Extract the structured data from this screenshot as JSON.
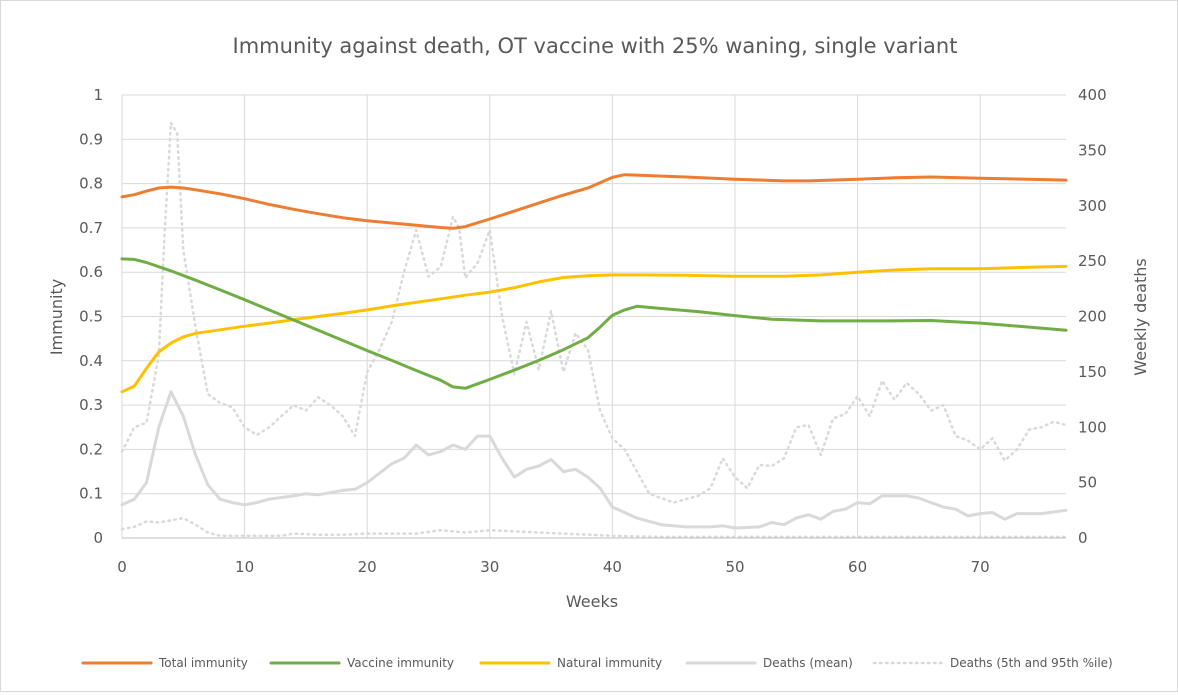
{
  "chart_data": {
    "type": "line",
    "title": "Immunity against death, OT vaccine with 25% waning, single variant",
    "xlabel": "Weeks",
    "ylabel": "Immunity",
    "y2label": "Weekly deaths",
    "xlim": [
      0,
      77
    ],
    "ylim": [
      0,
      1
    ],
    "y2lim": [
      0,
      400
    ],
    "x_ticks": [
      0,
      10,
      20,
      30,
      40,
      50,
      60,
      70
    ],
    "y_ticks": [
      0,
      0.1,
      0.2,
      0.3,
      0.4,
      0.5,
      0.6,
      0.7,
      0.8,
      0.9,
      1
    ],
    "y2_ticks": [
      0,
      50,
      100,
      150,
      200,
      250,
      300,
      350,
      400
    ],
    "grid": true,
    "legend_position": "bottom",
    "series": [
      {
        "name": "Total immunity",
        "axis": "left",
        "color": "#ED7D31",
        "style": "solid",
        "points": [
          [
            0,
            0.77
          ],
          [
            1,
            0.775
          ],
          [
            2,
            0.783
          ],
          [
            3,
            0.79
          ],
          [
            4,
            0.792
          ],
          [
            5,
            0.79
          ],
          [
            6,
            0.786
          ],
          [
            8,
            0.777
          ],
          [
            10,
            0.766
          ],
          [
            12,
            0.753
          ],
          [
            14,
            0.742
          ],
          [
            16,
            0.732
          ],
          [
            18,
            0.723
          ],
          [
            20,
            0.716
          ],
          [
            22,
            0.711
          ],
          [
            24,
            0.706
          ],
          [
            26,
            0.701
          ],
          [
            27,
            0.699
          ],
          [
            28,
            0.703
          ],
          [
            30,
            0.72
          ],
          [
            32,
            0.738
          ],
          [
            34,
            0.756
          ],
          [
            36,
            0.774
          ],
          [
            38,
            0.79
          ],
          [
            40,
            0.814
          ],
          [
            41,
            0.82
          ],
          [
            43,
            0.818
          ],
          [
            46,
            0.815
          ],
          [
            50,
            0.81
          ],
          [
            54,
            0.806
          ],
          [
            56,
            0.806
          ],
          [
            60,
            0.81
          ],
          [
            63,
            0.813
          ],
          [
            66,
            0.815
          ],
          [
            70,
            0.812
          ],
          [
            74,
            0.81
          ],
          [
            77,
            0.808
          ]
        ]
      },
      {
        "name": "Vaccine immunity",
        "axis": "left",
        "color": "#70AD47",
        "style": "solid",
        "points": [
          [
            0,
            0.63
          ],
          [
            1,
            0.629
          ],
          [
            2,
            0.622
          ],
          [
            4,
            0.603
          ],
          [
            6,
            0.582
          ],
          [
            8,
            0.56
          ],
          [
            10,
            0.538
          ],
          [
            12,
            0.515
          ],
          [
            14,
            0.492
          ],
          [
            16,
            0.469
          ],
          [
            18,
            0.446
          ],
          [
            20,
            0.423
          ],
          [
            22,
            0.401
          ],
          [
            24,
            0.378
          ],
          [
            26,
            0.356
          ],
          [
            27,
            0.341
          ],
          [
            28,
            0.338
          ],
          [
            30,
            0.358
          ],
          [
            32,
            0.379
          ],
          [
            34,
            0.401
          ],
          [
            36,
            0.425
          ],
          [
            38,
            0.452
          ],
          [
            39,
            0.476
          ],
          [
            40,
            0.503
          ],
          [
            41,
            0.515
          ],
          [
            42,
            0.523
          ],
          [
            44,
            0.518
          ],
          [
            47,
            0.511
          ],
          [
            50,
            0.502
          ],
          [
            53,
            0.494
          ],
          [
            57,
            0.49
          ],
          [
            62,
            0.49
          ],
          [
            66,
            0.491
          ],
          [
            70,
            0.485
          ],
          [
            74,
            0.476
          ],
          [
            77,
            0.469
          ]
        ]
      },
      {
        "name": "Natural immunity",
        "axis": "left",
        "color": "#FFC000",
        "style": "solid",
        "points": [
          [
            0,
            0.33
          ],
          [
            1,
            0.343
          ],
          [
            2,
            0.383
          ],
          [
            3,
            0.42
          ],
          [
            4,
            0.44
          ],
          [
            5,
            0.454
          ],
          [
            6,
            0.462
          ],
          [
            8,
            0.47
          ],
          [
            10,
            0.478
          ],
          [
            12,
            0.485
          ],
          [
            14,
            0.493
          ],
          [
            16,
            0.5
          ],
          [
            18,
            0.507
          ],
          [
            20,
            0.515
          ],
          [
            22,
            0.524
          ],
          [
            24,
            0.532
          ],
          [
            26,
            0.54
          ],
          [
            28,
            0.548
          ],
          [
            30,
            0.555
          ],
          [
            32,
            0.565
          ],
          [
            34,
            0.578
          ],
          [
            36,
            0.588
          ],
          [
            38,
            0.592
          ],
          [
            40,
            0.594
          ],
          [
            42,
            0.594
          ],
          [
            46,
            0.593
          ],
          [
            50,
            0.591
          ],
          [
            54,
            0.591
          ],
          [
            57,
            0.594
          ],
          [
            60,
            0.6
          ],
          [
            63,
            0.605
          ],
          [
            66,
            0.608
          ],
          [
            70,
            0.608
          ],
          [
            74,
            0.611
          ],
          [
            77,
            0.613
          ]
        ]
      },
      {
        "name": "Deaths (mean)",
        "axis": "right",
        "color": "#D9D9D9",
        "style": "solid",
        "points": [
          [
            0,
            30
          ],
          [
            1,
            35
          ],
          [
            2,
            50
          ],
          [
            3,
            100
          ],
          [
            4,
            132
          ],
          [
            5,
            110
          ],
          [
            6,
            75
          ],
          [
            7,
            48
          ],
          [
            8,
            35
          ],
          [
            9,
            32
          ],
          [
            10,
            30
          ],
          [
            11,
            32
          ],
          [
            12,
            35
          ],
          [
            14,
            38
          ],
          [
            15,
            40
          ],
          [
            16,
            39
          ],
          [
            18,
            43
          ],
          [
            19,
            44
          ],
          [
            20,
            50
          ],
          [
            22,
            67
          ],
          [
            23,
            72
          ],
          [
            24,
            84
          ],
          [
            25,
            75
          ],
          [
            26,
            78
          ],
          [
            27,
            84
          ],
          [
            28,
            80
          ],
          [
            29,
            92
          ],
          [
            30,
            92
          ],
          [
            31,
            72
          ],
          [
            32,
            55
          ],
          [
            33,
            62
          ],
          [
            34,
            65
          ],
          [
            35,
            71
          ],
          [
            36,
            60
          ],
          [
            37,
            62
          ],
          [
            38,
            55
          ],
          [
            39,
            45
          ],
          [
            40,
            28
          ],
          [
            42,
            18
          ],
          [
            44,
            12
          ],
          [
            46,
            10
          ],
          [
            48,
            10
          ],
          [
            49,
            11
          ],
          [
            50,
            9
          ],
          [
            52,
            10
          ],
          [
            53,
            14
          ],
          [
            54,
            12
          ],
          [
            55,
            18
          ],
          [
            56,
            21
          ],
          [
            57,
            17
          ],
          [
            58,
            24
          ],
          [
            59,
            26
          ],
          [
            60,
            32
          ],
          [
            61,
            31
          ],
          [
            62,
            38
          ],
          [
            63,
            38
          ],
          [
            64,
            38
          ],
          [
            65,
            36
          ],
          [
            66,
            32
          ],
          [
            67,
            28
          ],
          [
            68,
            26
          ],
          [
            69,
            20
          ],
          [
            70,
            22
          ],
          [
            71,
            23
          ],
          [
            72,
            17
          ],
          [
            73,
            22
          ],
          [
            75,
            22
          ],
          [
            77,
            25
          ]
        ]
      },
      {
        "name": "Deaths (5th and 95th %ile)",
        "axis": "right",
        "color": "#D9D9D9",
        "style": "dotted",
        "points": [
          [
            0,
            78
          ],
          [
            1,
            100
          ],
          [
            2,
            104
          ],
          [
            3,
            165
          ],
          [
            3.5,
            280
          ],
          [
            4,
            375
          ],
          [
            4.5,
            365
          ],
          [
            5,
            260
          ],
          [
            6,
            190
          ],
          [
            7,
            130
          ],
          [
            8,
            122
          ],
          [
            9,
            118
          ],
          [
            10,
            100
          ],
          [
            11,
            93
          ],
          [
            12,
            100
          ],
          [
            14,
            120
          ],
          [
            15,
            115
          ],
          [
            16,
            127
          ],
          [
            17,
            120
          ],
          [
            18,
            110
          ],
          [
            19,
            92
          ],
          [
            20,
            150
          ],
          [
            21,
            170
          ],
          [
            22,
            195
          ],
          [
            23,
            240
          ],
          [
            24,
            278
          ],
          [
            25,
            236
          ],
          [
            26,
            245
          ],
          [
            27,
            290
          ],
          [
            27.5,
            280
          ],
          [
            28,
            235
          ],
          [
            29,
            248
          ],
          [
            30,
            278
          ],
          [
            31,
            200
          ],
          [
            32,
            148
          ],
          [
            33,
            195
          ],
          [
            34,
            152
          ],
          [
            35,
            205
          ],
          [
            36,
            150
          ],
          [
            37,
            185
          ],
          [
            38,
            170
          ],
          [
            39,
            115
          ],
          [
            40,
            90
          ],
          [
            41,
            80
          ],
          [
            42,
            60
          ],
          [
            43,
            40
          ],
          [
            45,
            32
          ],
          [
            46,
            35
          ],
          [
            47,
            38
          ],
          [
            48,
            45
          ],
          [
            49,
            72
          ],
          [
            50,
            55
          ],
          [
            51,
            45
          ],
          [
            52,
            66
          ],
          [
            53,
            65
          ],
          [
            54,
            72
          ],
          [
            55,
            100
          ],
          [
            56,
            102
          ],
          [
            57,
            75
          ],
          [
            58,
            108
          ],
          [
            59,
            112
          ],
          [
            60,
            128
          ],
          [
            61,
            110
          ],
          [
            62,
            142
          ],
          [
            63,
            125
          ],
          [
            64,
            140
          ],
          [
            65,
            130
          ],
          [
            66,
            115
          ],
          [
            67,
            120
          ],
          [
            68,
            92
          ],
          [
            69,
            88
          ],
          [
            70,
            80
          ],
          [
            71,
            90
          ],
          [
            72,
            70
          ],
          [
            73,
            80
          ],
          [
            74,
            98
          ],
          [
            75,
            100
          ],
          [
            76,
            105
          ],
          [
            77,
            102
          ]
        ]
      },
      {
        "name": "Deaths (5th and 95th %ile)",
        "axis": "right",
        "color": "#D9D9D9",
        "style": "dotted",
        "legend": false,
        "points": [
          [
            0,
            8
          ],
          [
            1,
            10
          ],
          [
            2,
            15
          ],
          [
            3,
            14
          ],
          [
            4,
            16
          ],
          [
            5,
            18
          ],
          [
            6,
            12
          ],
          [
            7,
            5
          ],
          [
            8,
            2
          ],
          [
            10,
            2
          ],
          [
            13,
            2
          ],
          [
            14,
            4
          ],
          [
            16,
            3
          ],
          [
            18,
            3
          ],
          [
            20,
            4
          ],
          [
            24,
            4
          ],
          [
            26,
            7
          ],
          [
            28,
            5
          ],
          [
            30,
            7
          ],
          [
            34,
            5
          ],
          [
            36,
            4
          ],
          [
            38,
            3
          ],
          [
            40,
            2
          ],
          [
            44,
            1
          ],
          [
            50,
            1
          ],
          [
            60,
            1
          ],
          [
            70,
            1
          ],
          [
            77,
            1
          ]
        ]
      }
    ]
  }
}
